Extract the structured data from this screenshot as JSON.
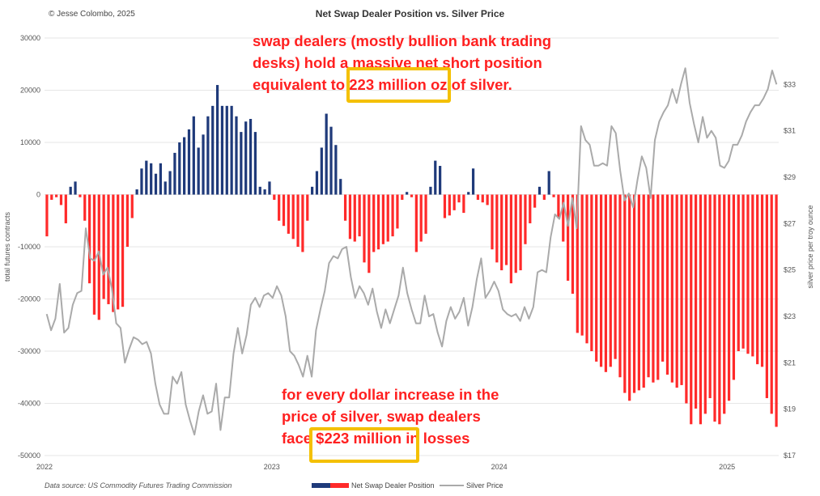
{
  "header": {
    "copyright": "© Jesse Colombo, 2025",
    "title": "Net Swap Dealer Position vs. Silver Price",
    "source": "Data source: US Commodity Futures Trading Commission"
  },
  "annotations": {
    "top": [
      "swap dealers (mostly bullion bank trading",
      "desks) hold a massive net short position",
      "equivalent to 223 million oz of silver."
    ],
    "bottom": [
      "for every dollar increase in the",
      "price of silver, swap dealers",
      "face $223 million in losses"
    ]
  },
  "colors": {
    "positive_bar": "#1f3a7a",
    "negative_bar": "#ff2a2a",
    "price_line": "#aaaaaa",
    "highlight": "#f4c000",
    "annotation_text": "#ff2020"
  },
  "chart_data": {
    "type": "bar",
    "title": "Net Swap Dealer Position vs. Silver Price",
    "ylabel_left": "total futures contracts",
    "ylabel_right": "silver price per troy ounce",
    "ylim_left": [
      -50000,
      30000
    ],
    "yticks_left": [
      "30000",
      "20000",
      "10000",
      "0",
      "-10000",
      "-20000",
      "-30000",
      "-40000",
      "-50000"
    ],
    "ylim_right": [
      17,
      35
    ],
    "yticks_right": [
      "$33",
      "$31",
      "$29",
      "$27",
      "$25",
      "$23",
      "$21",
      "$19",
      "$17"
    ],
    "x_range": [
      "2022-01-01",
      "2025-03-25"
    ],
    "xticks": [
      "2022",
      "2023",
      "2024",
      "2025"
    ],
    "grid": true,
    "legend_position": "bottom",
    "series": [
      {
        "name": "Net Swap Dealer Position",
        "type": "bar",
        "axis": "left",
        "values": [
          -8000,
          -1000,
          -500,
          -2000,
          -5500,
          1500,
          2500,
          -500,
          -5000,
          -17000,
          -23000,
          -24000,
          -20000,
          -21000,
          -22500,
          -22000,
          -21500,
          -10000,
          -4500,
          1000,
          5000,
          6500,
          6000,
          4000,
          6000,
          2500,
          4500,
          8000,
          10000,
          11000,
          12500,
          15000,
          9000,
          11500,
          15000,
          17000,
          21000,
          17000,
          17000,
          17000,
          15000,
          12000,
          14000,
          14500,
          12000,
          1500,
          1000,
          2500,
          -1000,
          -5000,
          -6000,
          -7500,
          -8500,
          -10000,
          -11000,
          -5000,
          1500,
          4500,
          9000,
          15500,
          13000,
          9500,
          3000,
          -5000,
          -8500,
          -9000,
          -8000,
          -13000,
          -15000,
          -11000,
          -10500,
          -9500,
          -9000,
          -8000,
          -6500,
          -1000,
          500,
          -500,
          -11000,
          -9000,
          -7500,
          1500,
          6500,
          5500,
          -4500,
          -4000,
          -3000,
          -1500,
          -3500,
          500,
          5000,
          -1000,
          -1500,
          -2000,
          -10500,
          -13000,
          -14500,
          -13500,
          -17000,
          -15000,
          -14500,
          -9500,
          -5500,
          -2500,
          1500,
          -1000,
          4500,
          -500,
          -4500,
          -9000,
          -16500,
          -19000,
          -26500,
          -27000,
          -28500,
          -30000,
          -32000,
          -33000,
          -34000,
          -33000,
          -31500,
          -35000,
          -38000,
          -39500,
          -38000,
          -37500,
          -37000,
          -35000,
          -36000,
          -35500,
          -32000,
          -34500,
          -36000,
          -37000,
          -36500,
          -40000,
          -44000,
          -41000,
          -44000,
          -42000,
          -39000,
          -43500,
          -44000,
          -42000,
          -39500,
          -35500,
          -30000,
          -29500,
          -30500,
          -31000,
          -32500,
          -33000,
          -39000,
          -42000,
          -44500
        ]
      },
      {
        "name": "Silver Price",
        "type": "line",
        "axis": "right",
        "values": [
          23.1,
          22.4,
          22.9,
          24.4,
          22.3,
          22.5,
          23.5,
          24.0,
          24.1,
          26.8,
          25.5,
          25.4,
          25.8,
          24.8,
          25.1,
          24.2,
          22.7,
          22.5,
          21.0,
          21.6,
          22.1,
          22.0,
          21.8,
          21.9,
          21.4,
          20.1,
          19.2,
          18.8,
          18.8,
          20.4,
          20.1,
          20.6,
          19.2,
          18.5,
          17.9,
          18.9,
          19.6,
          18.8,
          18.9,
          20.1,
          18.1,
          19.5,
          19.5,
          21.4,
          22.5,
          21.4,
          22.2,
          23.5,
          23.8,
          23.4,
          23.9,
          24.0,
          23.8,
          24.3,
          23.9,
          23.0,
          21.5,
          21.3,
          20.9,
          20.4,
          21.3,
          20.4,
          22.4,
          23.3,
          24.1,
          25.3,
          25.6,
          25.5,
          25.9,
          26.0,
          24.7,
          23.8,
          24.3,
          24.0,
          23.5,
          24.2,
          23.2,
          22.5,
          23.3,
          22.7,
          23.3,
          23.9,
          25.1,
          24.0,
          23.3,
          22.7,
          22.7,
          23.9,
          23.0,
          23.1,
          22.3,
          21.7,
          22.8,
          23.4,
          22.9,
          23.2,
          23.8,
          22.6,
          23.4,
          24.6,
          25.5,
          23.8,
          24.1,
          24.5,
          24.1,
          23.3,
          23.1,
          23.0,
          23.1,
          22.8,
          23.4,
          22.9,
          23.4,
          24.9,
          25.0,
          24.9,
          26.4,
          27.4,
          27.2,
          27.9,
          26.9,
          28.1,
          26.8,
          31.2,
          30.6,
          30.4,
          29.5,
          29.5,
          29.6,
          29.5,
          31.2,
          30.9,
          29.3,
          28.0,
          28.3,
          27.7,
          28.9,
          29.9,
          29.4,
          28.1,
          30.6,
          31.4,
          31.8,
          32.1,
          32.8,
          32.2,
          33.0,
          33.7,
          32.2,
          31.3,
          30.5,
          31.6,
          30.7,
          31.0,
          30.7,
          29.5,
          29.4,
          29.7,
          30.4,
          30.4,
          30.8,
          31.4,
          31.8,
          32.1,
          32.1,
          32.4,
          32.8,
          33.6,
          33.0
        ]
      }
    ]
  },
  "legend": {
    "bar_label": "Net Swap Dealer Position",
    "line_label": "Silver Price"
  }
}
